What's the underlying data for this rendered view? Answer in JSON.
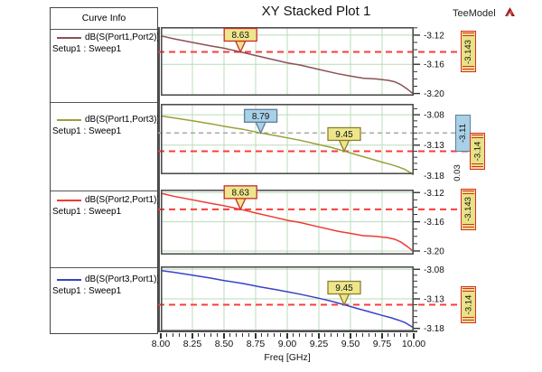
{
  "window": {
    "title": "XY Stacked Plot 1",
    "model_label": "TeeModel"
  },
  "legend": {
    "header": "Curve Info",
    "entries": [
      {
        "label": "dB(S(Port1,Port2))",
        "setup": "Setup1 : Sweep1",
        "color": "#8e4f57"
      },
      {
        "label": "dB(S(Port1,Port3))",
        "setup": "Setup1 : Sweep1",
        "color": "#9aa03a"
      },
      {
        "label": "dB(S(Port2,Port1))",
        "setup": "Setup1 : Sweep1",
        "color": "#ee3a33"
      },
      {
        "label": "dB(S(Port3,Port1))",
        "setup": "Setup1 : Sweep1",
        "color": "#3743c5"
      }
    ]
  },
  "chart_data": {
    "type": "line",
    "title": "XY Stacked Plot 1",
    "xlabel": "Freq [GHz]",
    "xlim": [
      8.0,
      10.0
    ],
    "x_major_ticks": [
      8.0,
      8.25,
      8.5,
      8.75,
      9.0,
      9.25,
      9.5,
      9.75,
      10.0
    ],
    "x_tick_labels": [
      "8.00",
      "8.25",
      "8.50",
      "8.75",
      "9.00",
      "9.25",
      "9.50",
      "9.75",
      "10.00"
    ],
    "x_minor_step": 0.05,
    "grid": true,
    "subplots": [
      {
        "name": "dB(S(Port1,Port2))",
        "setup": "Setup1 : Sweep1",
        "color": "#8e4f57",
        "ylim": [
          -3.203,
          -3.109
        ],
        "yticks": [
          -3.12,
          -3.16,
          -3.2
        ],
        "ytick_labels": [
          "-3.12",
          "-3.16",
          "-3.20"
        ],
        "y_minor_step": 0.01,
        "x": [
          8.0,
          8.1,
          8.25,
          8.4,
          8.5,
          8.63,
          8.75,
          8.9,
          9.0,
          9.1,
          9.25,
          9.4,
          9.5,
          9.6,
          9.7,
          9.8,
          9.85,
          9.9,
          9.95,
          10.0
        ],
        "y": [
          -3.121,
          -3.125,
          -3.13,
          -3.135,
          -3.138,
          -3.143,
          -3.148,
          -3.154,
          -3.158,
          -3.161,
          -3.167,
          -3.173,
          -3.176,
          -3.179,
          -3.18,
          -3.182,
          -3.184,
          -3.188,
          -3.194,
          -3.201
        ],
        "ref_lines": [
          {
            "value": -3.143,
            "label": "-3.143",
            "color": "#fb3b3b",
            "style": "dashed",
            "flag_style": "red"
          }
        ],
        "markers": [
          {
            "x": 8.63,
            "y": -3.143,
            "label": "8.63",
            "fill": "#eee68c",
            "border": "#cc2a2a"
          }
        ]
      },
      {
        "name": "dB(S(Port1,Port3))",
        "setup": "Setup1 : Sweep1",
        "color": "#9aa03a",
        "ylim": [
          -3.178,
          -3.062
        ],
        "yticks": [
          -3.08,
          -3.13,
          -3.18
        ],
        "ytick_labels": [
          "-3.08",
          "-3.13",
          "-3.18"
        ],
        "y_minor_step": 0.01,
        "x": [
          8.0,
          8.1,
          8.25,
          8.4,
          8.5,
          8.65,
          8.79,
          8.9,
          9.0,
          9.1,
          9.25,
          9.35,
          9.45,
          9.55,
          9.65,
          9.75,
          9.82,
          9.88,
          9.93,
          9.97,
          10.0
        ],
        "y": [
          -3.082,
          -3.085,
          -3.09,
          -3.095,
          -3.099,
          -3.104,
          -3.11,
          -3.114,
          -3.118,
          -3.122,
          -3.129,
          -3.134,
          -3.14,
          -3.146,
          -3.152,
          -3.158,
          -3.162,
          -3.166,
          -3.17,
          -3.175,
          -3.179
        ],
        "ref_lines": [
          {
            "value": -3.11,
            "label": "-3.11",
            "color": "#a8a8a8",
            "style": "dashed",
            "flag_style": "blue"
          },
          {
            "value": -3.14,
            "label": "-3.14",
            "color": "#fb3b3b",
            "style": "dashed",
            "flag_style": "red"
          }
        ],
        "markers": [
          {
            "x": 8.79,
            "y": -3.11,
            "label": "8.79",
            "fill": "#a8d0e6",
            "border": "#5b7f99"
          },
          {
            "x": 9.45,
            "y": -3.14,
            "label": "9.45",
            "fill": "#eee68c",
            "border": "#8f7f2a"
          }
        ],
        "delta_label": "0.03"
      },
      {
        "name": "dB(S(Port2,Port1))",
        "setup": "Setup1 : Sweep1",
        "color": "#ee3a33",
        "ylim": [
          -3.205,
          -3.116
        ],
        "yticks": [
          -3.12,
          -3.16,
          -3.2
        ],
        "ytick_labels": [
          "-3.12",
          "-3.16",
          "-3.20"
        ],
        "y_minor_step": 0.01,
        "x": [
          8.0,
          8.1,
          8.25,
          8.4,
          8.5,
          8.63,
          8.75,
          8.9,
          9.0,
          9.1,
          9.25,
          9.4,
          9.5,
          9.6,
          9.7,
          9.8,
          9.85,
          9.9,
          9.95,
          10.0
        ],
        "y": [
          -3.121,
          -3.125,
          -3.13,
          -3.135,
          -3.138,
          -3.143,
          -3.148,
          -3.154,
          -3.158,
          -3.161,
          -3.167,
          -3.173,
          -3.176,
          -3.179,
          -3.18,
          -3.182,
          -3.184,
          -3.188,
          -3.194,
          -3.201
        ],
        "ref_lines": [
          {
            "value": -3.143,
            "label": "-3.143",
            "color": "#fb3b3b",
            "style": "dashed",
            "flag_style": "red"
          }
        ],
        "markers": [
          {
            "x": 8.63,
            "y": -3.143,
            "label": "8.63",
            "fill": "#eee68c",
            "border": "#cc2a2a"
          }
        ]
      },
      {
        "name": "dB(S(Port3,Port1))",
        "setup": "Setup1 : Sweep1",
        "color": "#3743c5",
        "ylim": [
          -3.185,
          -3.075
        ],
        "yticks": [
          -3.08,
          -3.13,
          -3.18
        ],
        "ytick_labels": [
          "-3.08",
          "-3.13",
          "-3.18"
        ],
        "y_minor_step": 0.01,
        "x": [
          8.0,
          8.1,
          8.25,
          8.4,
          8.5,
          8.65,
          8.79,
          8.9,
          9.0,
          9.1,
          9.25,
          9.35,
          9.45,
          9.55,
          9.65,
          9.75,
          9.82,
          9.88,
          9.93,
          9.97,
          10.0
        ],
        "y": [
          -3.082,
          -3.085,
          -3.09,
          -3.095,
          -3.099,
          -3.104,
          -3.11,
          -3.114,
          -3.118,
          -3.122,
          -3.129,
          -3.134,
          -3.14,
          -3.146,
          -3.152,
          -3.158,
          -3.162,
          -3.166,
          -3.17,
          -3.175,
          -3.179
        ],
        "ref_lines": [
          {
            "value": -3.14,
            "label": "-3.14",
            "color": "#fb3b3b",
            "style": "dashed",
            "flag_style": "red"
          }
        ],
        "markers": [
          {
            "x": 9.45,
            "y": -3.14,
            "label": "9.45",
            "fill": "#eee68c",
            "border": "#8f7f2a"
          }
        ]
      }
    ]
  }
}
